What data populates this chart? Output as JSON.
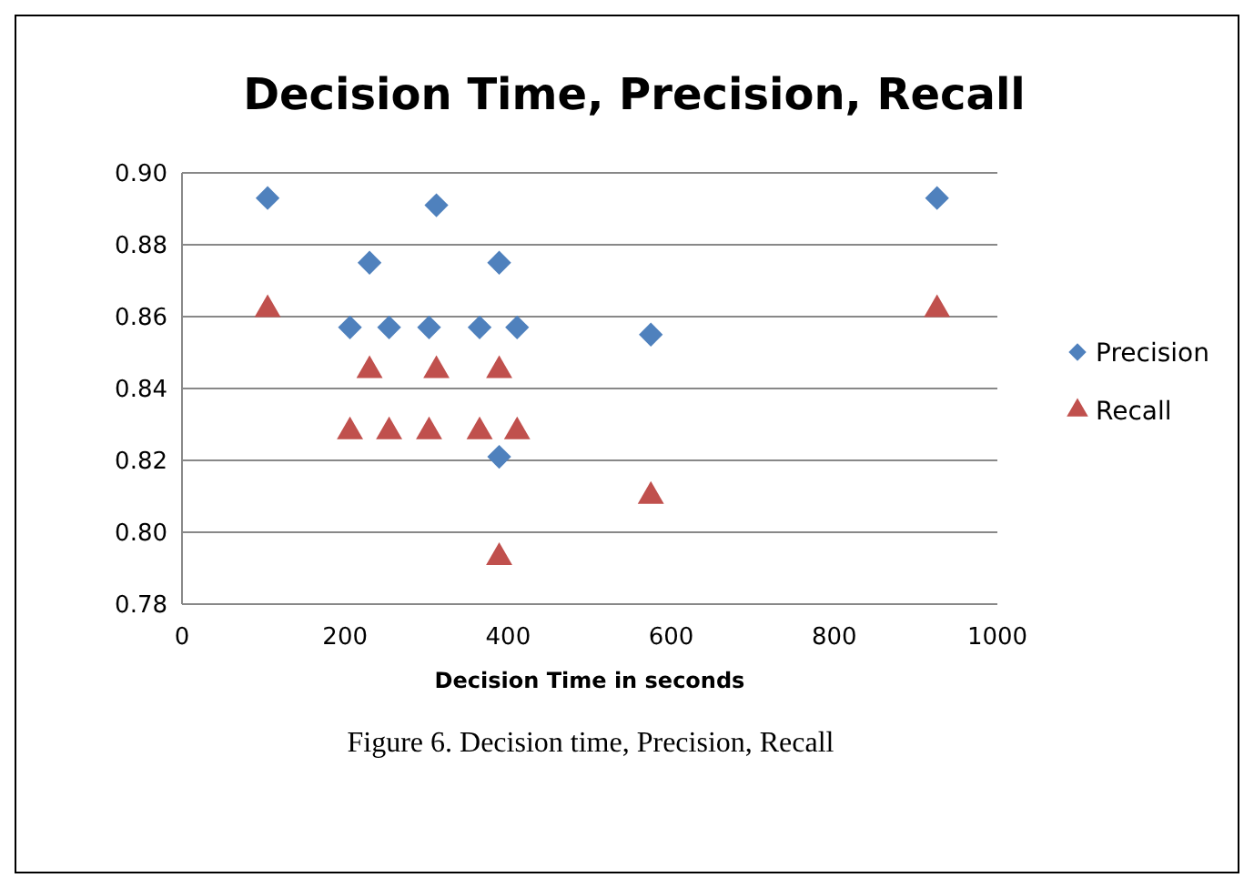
{
  "chart_data": {
    "type": "scatter",
    "title": "Decision Time, Precision, Recall",
    "xlabel": "Decision Time in seconds",
    "annotations": [
      "Figure 6. Decision time, Precision, Recall"
    ],
    "xlim": [
      0,
      1000
    ],
    "xticks": [
      0,
      200,
      400,
      600,
      800,
      1000
    ],
    "ylim": [
      0.78,
      0.9
    ],
    "yticks": [
      {
        "value": 0.78,
        "label": "0.78"
      },
      {
        "value": 0.8,
        "label": "0.80"
      },
      {
        "value": 0.82,
        "label": "0.82"
      },
      {
        "value": 0.84,
        "label": "0.84"
      },
      {
        "value": 0.86,
        "label": "0.86"
      },
      {
        "value": 0.88,
        "label": "0.88"
      },
      {
        "value": 0.9,
        "label": "0.90"
      }
    ],
    "grid": "y",
    "legend": "right",
    "series": [
      {
        "name": "Precision",
        "color": "#4f81bd",
        "marker": "diamond",
        "x": [
          105,
          206,
          230,
          254,
          303,
          312,
          365,
          389,
          389,
          411,
          575,
          926
        ],
        "values": [
          0.893,
          0.857,
          0.875,
          0.857,
          0.857,
          0.891,
          0.857,
          0.875,
          0.821,
          0.857,
          0.855,
          0.893
        ]
      },
      {
        "name": "Recall",
        "color": "#c0504d",
        "marker": "triangle",
        "x": [
          105,
          206,
          230,
          254,
          303,
          312,
          365,
          389,
          389,
          411,
          575,
          926
        ],
        "values": [
          0.862,
          0.828,
          0.845,
          0.828,
          0.828,
          0.845,
          0.828,
          0.845,
          0.793,
          0.828,
          0.81,
          0.862
        ]
      }
    ]
  }
}
